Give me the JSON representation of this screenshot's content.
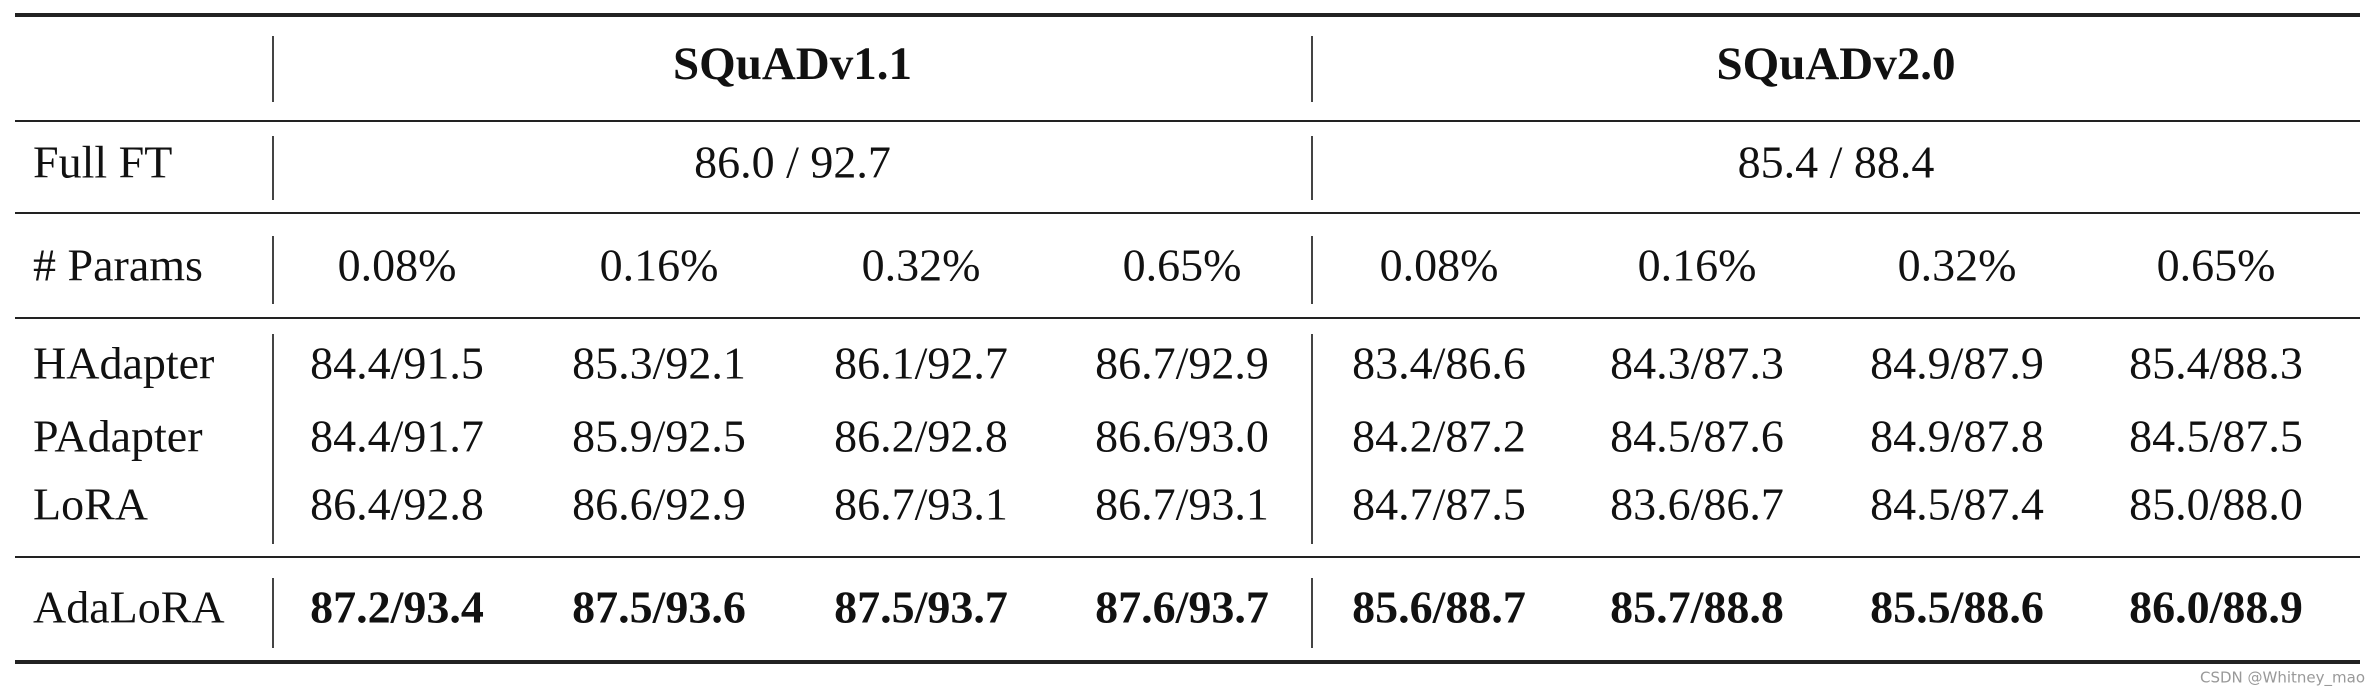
{
  "table": {
    "groups": [
      "SQuADv1.1",
      "SQuADv2.0"
    ],
    "full_ft": {
      "label": "Full FT",
      "values": [
        "86.0 / 92.7",
        "85.4 / 88.4"
      ]
    },
    "params": {
      "label": "# Params",
      "values": [
        "0.08%",
        "0.16%",
        "0.32%",
        "0.65%",
        "0.08%",
        "0.16%",
        "0.32%",
        "0.65%"
      ]
    },
    "rows": [
      {
        "method": "HAdapter",
        "values": [
          "84.4/91.5",
          "85.3/92.1",
          "86.1/92.7",
          "86.7/92.9",
          "83.4/86.6",
          "84.3/87.3",
          "84.9/87.9",
          "85.4/88.3"
        ]
      },
      {
        "method": "PAdapter",
        "values": [
          "84.4/91.7",
          "85.9/92.5",
          "86.2/92.8",
          "86.6/93.0",
          "84.2/87.2",
          "84.5/87.6",
          "84.9/87.8",
          "84.5/87.5"
        ]
      },
      {
        "method": "LoRA",
        "values": [
          "86.4/92.8",
          "86.6/92.9",
          "86.7/93.1",
          "86.7/93.1",
          "84.7/87.5",
          "83.6/86.7",
          "84.5/87.4",
          "85.0/88.0"
        ]
      }
    ],
    "best": {
      "method": "AdaLoRA",
      "values": [
        "87.2/93.4",
        "87.5/93.6",
        "87.5/93.7",
        "87.6/93.7",
        "85.6/88.7",
        "85.7/88.8",
        "85.5/88.6",
        "86.0/88.9"
      ]
    }
  },
  "watermark": "CSDN @Whitney_mao"
}
